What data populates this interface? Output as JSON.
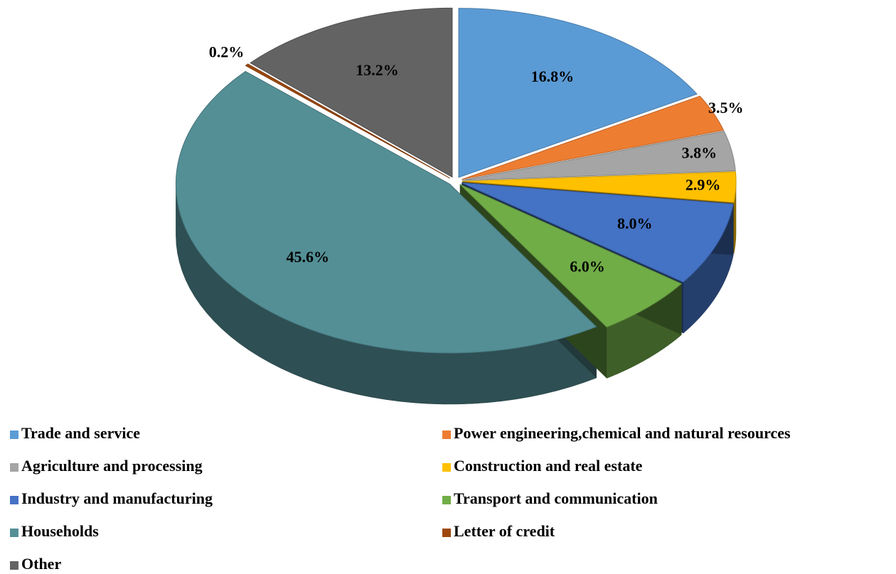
{
  "chart_data": {
    "type": "pie",
    "categories": [
      "Trade and service",
      "Power engineering,chemical and natural resources",
      "Agriculture and processing",
      "Construction and real estate",
      "Industry and manufacturing",
      "Transport and communication",
      "Households",
      "Letter of credit",
      "Other"
    ],
    "values": [
      16.8,
      3.5,
      3.8,
      2.9,
      8.0,
      6.0,
      45.6,
      0.2,
      13.2
    ],
    "value_labels": [
      "16.8%",
      "3.5%",
      "3.8%",
      "2.9%",
      "8.0%",
      "6.0%",
      "45.6%",
      "0.2%",
      "13.2%"
    ],
    "colors": [
      "#5b9bd5",
      "#ed7d31",
      "#a5a5a5",
      "#ffc000",
      "#4472c4",
      "#70ad47",
      "#548f96",
      "#9e480e",
      "#636363"
    ],
    "legend": "bottom"
  }
}
